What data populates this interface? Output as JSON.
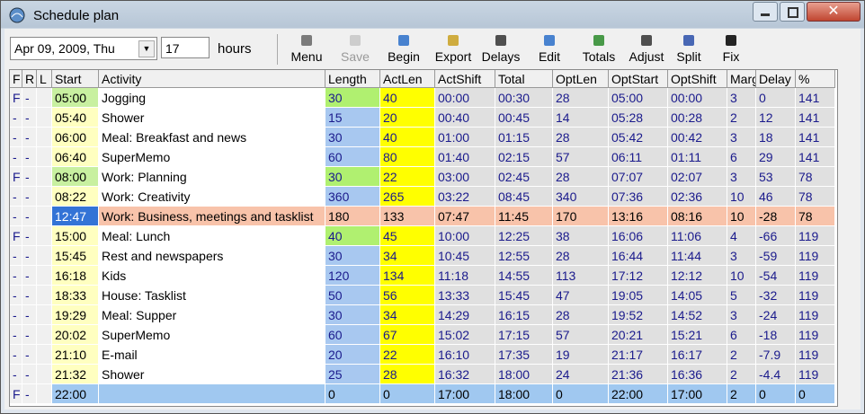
{
  "window": {
    "title": "Schedule plan"
  },
  "toolbar": {
    "date": "Apr 09, 2009, Thu",
    "hours_value": "17",
    "hours_label": "hours",
    "buttons": [
      "Menu",
      "Save",
      "Begin",
      "Export",
      "Delays",
      "Edit",
      "Totals",
      "Adjust",
      "Split",
      "Fix"
    ]
  },
  "table": {
    "columns": [
      "F",
      "R",
      "L",
      "Start",
      "Activity",
      "Length",
      "ActLen",
      "ActShift",
      "Total",
      "OptLen",
      "OptStart",
      "OptShift",
      "Marg",
      "Delay",
      "%"
    ],
    "rows": [
      [
        "F",
        "-",
        null,
        "05:00",
        "Jogging",
        30,
        40,
        "00:00",
        "00:30",
        28,
        "05:00",
        "00:00",
        3,
        0,
        141
      ],
      [
        "-",
        "-",
        null,
        "05:40",
        "Shower",
        15,
        20,
        "00:40",
        "00:45",
        14,
        "05:28",
        "00:28",
        2,
        12,
        141
      ],
      [
        "-",
        "-",
        null,
        "06:00",
        "Meal: Breakfast and news",
        30,
        40,
        "01:00",
        "01:15",
        28,
        "05:42",
        "00:42",
        3,
        18,
        141
      ],
      [
        "-",
        "-",
        null,
        "06:40",
        "SuperMemo",
        60,
        80,
        "01:40",
        "02:15",
        57,
        "06:11",
        "01:11",
        6,
        29,
        141
      ],
      [
        "F",
        "-",
        null,
        "08:00",
        "Work: Planning",
        30,
        22,
        "03:00",
        "02:45",
        28,
        "07:07",
        "02:07",
        3,
        53,
        78
      ],
      [
        "-",
        "-",
        null,
        "08:22",
        "Work: Creativity",
        360,
        265,
        "03:22",
        "08:45",
        340,
        "07:36",
        "02:36",
        10,
        46,
        78
      ],
      [
        "-",
        "-",
        null,
        "12:47",
        "Work: Business, meetings and tasklist",
        180,
        133,
        "07:47",
        "11:45",
        170,
        "13:16",
        "08:16",
        10,
        -28,
        78
      ],
      [
        "F",
        "-",
        null,
        "15:00",
        "Meal: Lunch",
        40,
        45,
        "10:00",
        "12:25",
        38,
        "16:06",
        "11:06",
        4,
        -66,
        119
      ],
      [
        "-",
        "-",
        null,
        "15:45",
        "Rest and newspapers",
        30,
        34,
        "10:45",
        "12:55",
        28,
        "16:44",
        "11:44",
        3,
        -59,
        119
      ],
      [
        "-",
        "-",
        null,
        "16:18",
        "Kids",
        120,
        134,
        "11:18",
        "14:55",
        113,
        "17:12",
        "12:12",
        10,
        -54,
        119
      ],
      [
        "-",
        "-",
        null,
        "18:33",
        "House: Tasklist",
        50,
        56,
        "13:33",
        "15:45",
        47,
        "19:05",
        "14:05",
        5,
        -32,
        119
      ],
      [
        "-",
        "-",
        null,
        "19:29",
        "Meal: Supper",
        30,
        34,
        "14:29",
        "16:15",
        28,
        "19:52",
        "14:52",
        3,
        -24,
        119
      ],
      [
        "-",
        "-",
        null,
        "20:02",
        "SuperMemo",
        60,
        67,
        "15:02",
        "17:15",
        57,
        "20:21",
        "15:21",
        6,
        -18,
        119
      ],
      [
        "-",
        "-",
        null,
        "21:10",
        "E-mail",
        20,
        22,
        "16:10",
        "17:35",
        19,
        "21:17",
        "16:17",
        2,
        -7.9,
        119
      ],
      [
        "-",
        "-",
        null,
        "21:32",
        "Shower",
        25,
        28,
        "16:32",
        "18:00",
        24,
        "21:36",
        "16:36",
        2,
        -4.4,
        119
      ],
      [
        "F",
        "-",
        null,
        "22:00",
        null,
        0,
        0,
        "17:00",
        "18:00",
        0,
        "22:00",
        "17:00",
        2,
        0,
        0
      ]
    ]
  }
}
